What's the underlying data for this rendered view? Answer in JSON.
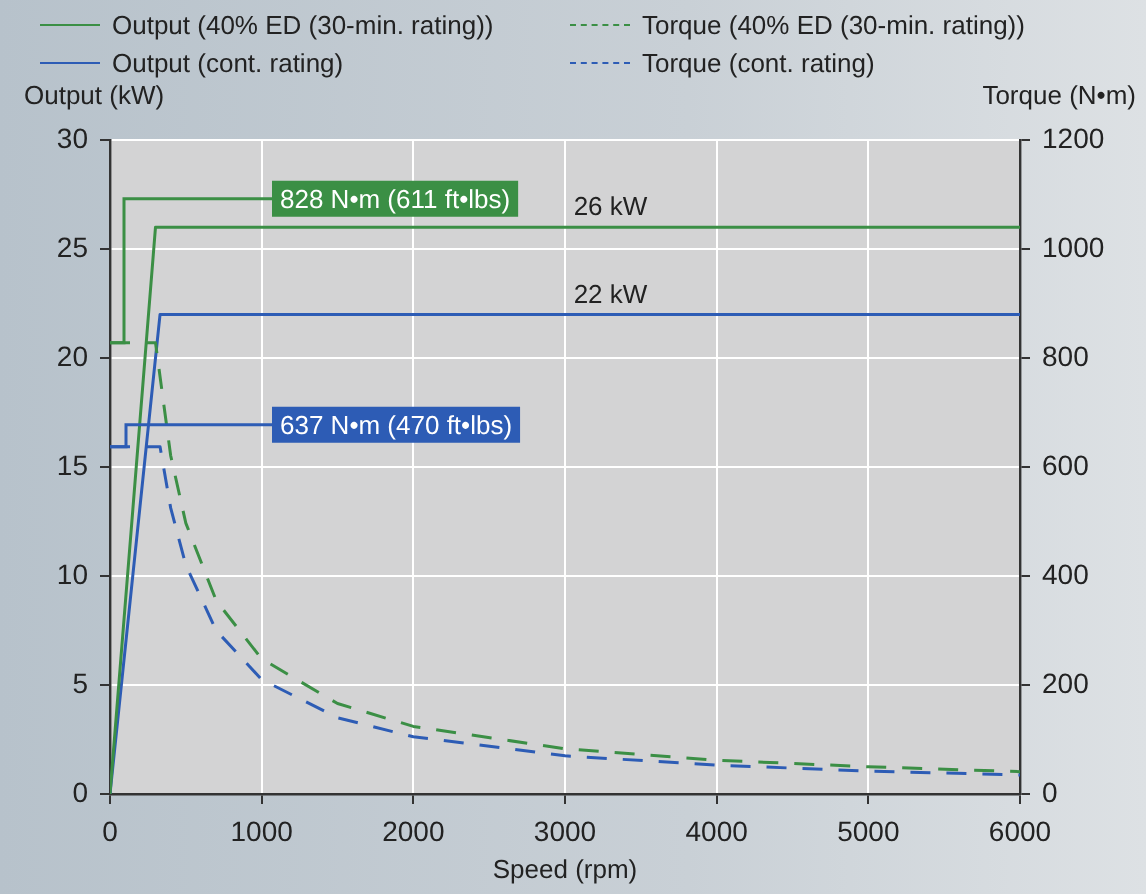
{
  "chart_data": {
    "type": "line",
    "xlabel": "Speed (rpm)",
    "ylabel": "Output (kW)",
    "y2label": "Torque (N•m)",
    "xlim": [
      0,
      6000
    ],
    "xticks": [
      0,
      1000,
      2000,
      3000,
      4000,
      5000,
      6000
    ],
    "ylim": [
      0,
      30
    ],
    "yticks": [
      0,
      5,
      10,
      15,
      20,
      25,
      30
    ],
    "y2lim": [
      0,
      1200
    ],
    "y2ticks": [
      0,
      200,
      400,
      600,
      800,
      1000,
      1200
    ],
    "grid": true,
    "legend": "top",
    "marker": "none",
    "series": [
      {
        "name": "Output (40% ED (30-min. rating))",
        "color": "#3b8f45",
        "line_style": "solid",
        "x": [
          0,
          300,
          6000
        ],
        "values": [
          0,
          26,
          26
        ]
      },
      {
        "name": "Torque (40% ED (30-min. rating))",
        "color": "#3b8f45",
        "line_style": "dashed",
        "axis": "y2",
        "x": [
          0,
          300,
          400,
          500,
          700,
          1000,
          1500,
          2000,
          3000,
          4000,
          5000,
          6000
        ],
        "values": [
          828,
          828,
          621,
          497,
          355,
          248,
          166,
          124,
          83,
          62,
          50,
          41
        ]
      },
      {
        "name": "Output (cont. rating)",
        "color": "#2d5cb5",
        "line_style": "solid",
        "x": [
          0,
          330,
          6000
        ],
        "values": [
          0,
          22,
          22
        ]
      },
      {
        "name": "Torque (cont. rating)",
        "color": "#2d5cb5",
        "line_style": "dashed",
        "axis": "y2",
        "x": [
          0,
          330,
          400,
          500,
          700,
          1000,
          1500,
          2000,
          3000,
          4000,
          5000,
          6000
        ],
        "values": [
          637,
          637,
          525,
          420,
          300,
          210,
          140,
          105,
          70,
          53,
          42,
          35
        ]
      }
    ],
    "annotations": [
      "828 N•m (611 ft•lbs)",
      "637 N•m (470 ft•lbs)",
      {
        "text": "26 kW",
        "x": 3300,
        "y": 26
      },
      {
        "text": "22 kW",
        "x": 3300,
        "y": 22
      }
    ]
  }
}
